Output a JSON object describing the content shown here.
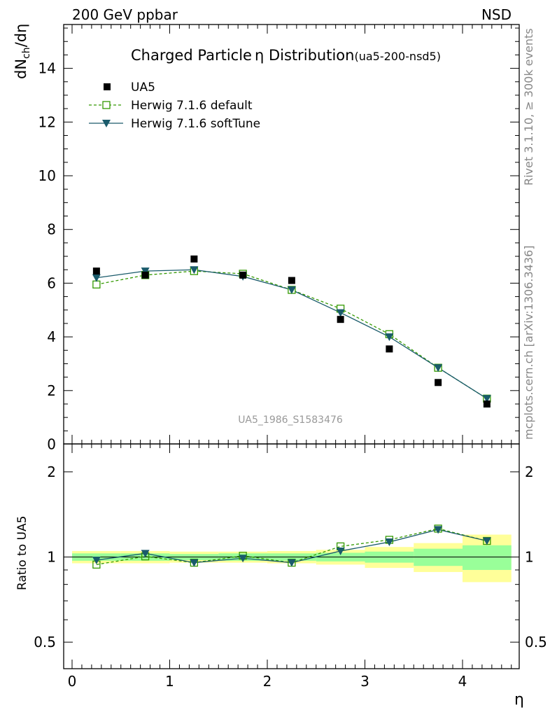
{
  "header": {
    "left": "200 GeV ppbar",
    "right": "NSD"
  },
  "title_main": "Charged Particle",
  "title_symbol": "η",
  "title_main2": " Distribution",
  "title_code": "(ua5-200-nsd5)",
  "side_texts": {
    "rivet": "Rivet 3.1.10, ≥ 300k events",
    "mcplots": "mcplots.cern.ch [arXiv:1306.3436]"
  },
  "analysis_label": "UA5_1986_S1583476",
  "y_axis_label": "dN",
  "y_axis_label_sub": "ch",
  "y_axis_label_tail": "/dη",
  "ratio_axis_label": "Ratio to UA5",
  "x_axis_label": "η",
  "colors": {
    "data": "#000000",
    "default": "#339900",
    "softtune": "#1a5b6b",
    "band_inner": "#99ff99",
    "band_outer": "#ffff99"
  },
  "chart_data": [
    {
      "type": "scatter",
      "panel": "main",
      "ylim": [
        0,
        15.7
      ],
      "xlim": [
        -0.1,
        4.55
      ],
      "y_ticks": [
        "0",
        "2",
        "4",
        "6",
        "8",
        "10",
        "12",
        "14"
      ],
      "series": [
        {
          "name": "UA5",
          "x": [
            0.25,
            0.75,
            1.25,
            1.75,
            2.25,
            2.75,
            3.25,
            3.75,
            4.25
          ],
          "y": [
            6.45,
            6.3,
            6.9,
            6.3,
            6.1,
            4.65,
            3.55,
            2.3,
            1.5
          ]
        },
        {
          "name": "Herwig 7.1.6 default",
          "x": [
            0.25,
            0.75,
            1.25,
            1.75,
            2.25,
            2.75,
            3.25,
            3.75,
            4.25
          ],
          "y": [
            5.95,
            6.3,
            6.45,
            6.35,
            5.75,
            5.05,
            4.1,
            2.85,
            1.7
          ]
        },
        {
          "name": "Herwig 7.1.6 softTune",
          "x": [
            0.25,
            0.75,
            1.25,
            1.75,
            2.25,
            2.75,
            3.25,
            3.75,
            4.25
          ],
          "y": [
            6.2,
            6.45,
            6.5,
            6.25,
            5.75,
            4.9,
            4.0,
            2.85,
            1.7
          ]
        }
      ]
    },
    {
      "type": "line",
      "panel": "ratio",
      "scale": "log",
      "ylim": [
        0.43,
        2.25
      ],
      "xlim": [
        -0.1,
        4.55
      ],
      "x_ticks": [
        "0",
        "1",
        "2",
        "3",
        "4"
      ],
      "y_ticks": [
        "0.5",
        "1",
        "2"
      ],
      "series": [
        {
          "name": "Herwig 7.1.6 default",
          "x": [
            0.25,
            0.75,
            1.25,
            1.75,
            2.25,
            2.75,
            3.25,
            3.75,
            4.25
          ],
          "y": [
            0.94,
            1.005,
            0.955,
            1.01,
            0.955,
            1.09,
            1.15,
            1.26,
            1.14
          ]
        },
        {
          "name": "Herwig 7.1.6 softTune",
          "x": [
            0.25,
            0.75,
            1.25,
            1.75,
            2.25,
            2.75,
            3.25,
            3.75,
            4.25
          ],
          "y": [
            0.975,
            1.03,
            0.955,
            0.99,
            0.955,
            1.05,
            1.13,
            1.25,
            1.14
          ]
        }
      ],
      "band_inner": [
        {
          "x0": 0.0,
          "x1": 0.5,
          "lo": 0.97,
          "hi": 1.03
        },
        {
          "x0": 0.5,
          "x1": 1.0,
          "lo": 0.97,
          "hi": 1.03
        },
        {
          "x0": 1.0,
          "x1": 1.5,
          "lo": 0.975,
          "hi": 1.025
        },
        {
          "x0": 1.5,
          "x1": 2.0,
          "lo": 0.97,
          "hi": 1.03
        },
        {
          "x0": 2.0,
          "x1": 2.5,
          "lo": 0.97,
          "hi": 1.03
        },
        {
          "x0": 2.5,
          "x1": 3.0,
          "lo": 0.965,
          "hi": 1.035
        },
        {
          "x0": 3.0,
          "x1": 3.5,
          "lo": 0.955,
          "hi": 1.045
        },
        {
          "x0": 3.5,
          "x1": 4.0,
          "lo": 0.93,
          "hi": 1.07
        },
        {
          "x0": 4.0,
          "x1": 4.5,
          "lo": 0.9,
          "hi": 1.1
        }
      ],
      "band_outer": [
        {
          "x0": 0.0,
          "x1": 0.5,
          "lo": 0.95,
          "hi": 1.05
        },
        {
          "x0": 0.5,
          "x1": 1.0,
          "lo": 0.95,
          "hi": 1.05
        },
        {
          "x0": 1.0,
          "x1": 1.5,
          "lo": 0.955,
          "hi": 1.045
        },
        {
          "x0": 1.5,
          "x1": 2.0,
          "lo": 0.955,
          "hi": 1.045
        },
        {
          "x0": 2.0,
          "x1": 2.5,
          "lo": 0.95,
          "hi": 1.05
        },
        {
          "x0": 2.5,
          "x1": 3.0,
          "lo": 0.94,
          "hi": 1.06
        },
        {
          "x0": 3.0,
          "x1": 3.5,
          "lo": 0.915,
          "hi": 1.085
        },
        {
          "x0": 3.5,
          "x1": 4.0,
          "lo": 0.885,
          "hi": 1.12
        },
        {
          "x0": 4.0,
          "x1": 4.5,
          "lo": 0.815,
          "hi": 1.2
        }
      ]
    }
  ]
}
